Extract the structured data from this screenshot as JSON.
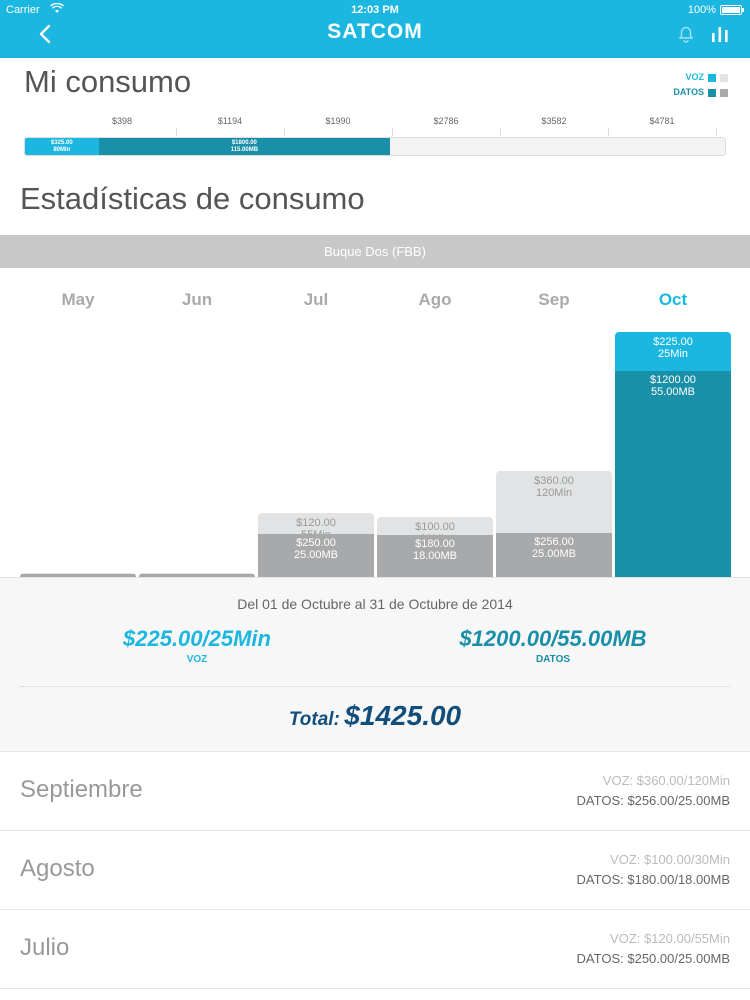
{
  "status": {
    "carrier": "Carrier",
    "time": "12:03 PM",
    "battery": "100%"
  },
  "header": {
    "title": "SATCOM"
  },
  "mi_consumo": {
    "title": "Mi consumo",
    "legend_voz": "VOZ",
    "legend_datos": "DATOS",
    "ticks": [
      "$398",
      "$1194",
      "$1990",
      "$2786",
      "$3582",
      "$4781"
    ],
    "bar_voz_amount": "$325.00",
    "bar_voz_units": "80Min",
    "bar_datos_amount": "$1800.00",
    "bar_datos_units": "115.00MB",
    "voz_fraction": 0.105,
    "datos_fraction": 0.415
  },
  "estadisticas": {
    "title": "Estadísticas de consumo",
    "vessel": "Buque Dos (FBB)"
  },
  "chart_data": {
    "type": "bar",
    "categories": [
      "May",
      "Jun",
      "Jul",
      "Ago",
      "Sep",
      "Oct"
    ],
    "series": [
      {
        "name": "DATOS",
        "values": [
          0,
          0,
          250,
          180,
          256,
          1200
        ],
        "labels": [
          "",
          "",
          "$250.00",
          "$180.00",
          "$256.00",
          "$1200.00"
        ],
        "units": [
          "",
          "",
          "25.00MB",
          "18.00MB",
          "25.00MB",
          "55.00MB"
        ]
      },
      {
        "name": "VOZ",
        "values": [
          0,
          0,
          120,
          100,
          360,
          225
        ],
        "labels": [
          "",
          "",
          "$120.00",
          "$100.00",
          "$360.00",
          "$225.00"
        ],
        "units": [
          "",
          "",
          "55Min",
          "30Min",
          "120Min",
          "25Min"
        ]
      }
    ],
    "active": "Oct"
  },
  "summary": {
    "range": "Del 01 de Octubre al 31 de Octubre de 2014",
    "voz_value": "$225.00/25Min",
    "voz_label": "VOZ",
    "datos_value": "$1200.00/55.00MB",
    "datos_label": "DATOS",
    "total_label": "Total:",
    "total_value": "$1425.00"
  },
  "history": [
    {
      "month": "Septiembre",
      "voz": "VOZ: $360.00/120Min",
      "datos": "DATOS: $256.00/25.00MB"
    },
    {
      "month": "Agosto",
      "voz": "VOZ: $100.00/30Min",
      "datos": "DATOS: $180.00/18.00MB"
    },
    {
      "month": "Julio",
      "voz": "VOZ: $120.00/55Min",
      "datos": "DATOS: $250.00/25.00MB"
    }
  ],
  "colors": {
    "brand": "#1cb7e0",
    "datos": "#1a8fa8",
    "total": "#124e7c",
    "inactive_voz": "#e1e3e4",
    "inactive_datos": "#a7a9ab"
  },
  "icons": {
    "back": "chevron-left-icon",
    "bell": "bell-icon",
    "stats": "bar-chart-icon",
    "wifi": "wifi-icon",
    "battery": "battery-icon"
  }
}
